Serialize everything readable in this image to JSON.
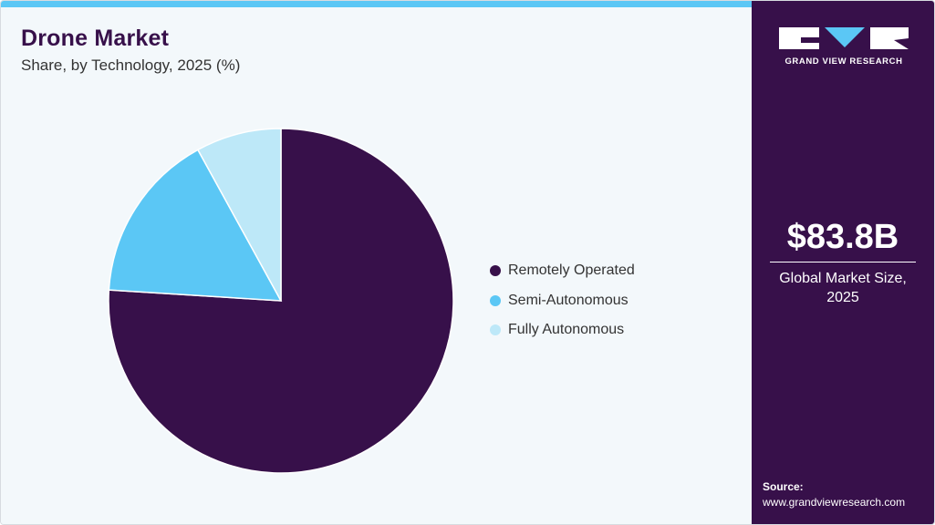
{
  "header": {
    "title": "Drone Market",
    "subtitle": "Share, by Technology, 2025 (%)"
  },
  "chart_data": {
    "type": "pie",
    "categories": [
      "Remotely Operated",
      "Semi-Autonomous",
      "Fully Autonomous"
    ],
    "values": [
      76,
      16,
      8
    ],
    "colors": [
      "#37104a",
      "#5bc7f5",
      "#bde8f8"
    ],
    "start_angle": "12 o'clock",
    "direction": "clockwise",
    "legend": "right"
  },
  "sidebar": {
    "logo_text": "GRAND VIEW RESEARCH",
    "market_value": "$83.8B",
    "caption_line1": "Global Market Size,",
    "caption_line2": "2025",
    "source_label": "Source:",
    "source_url": "www.grandviewresearch.com"
  },
  "colors": {
    "brand_dark": "#37104a",
    "accent": "#5bc7f5",
    "background": "#f3f8fb"
  }
}
